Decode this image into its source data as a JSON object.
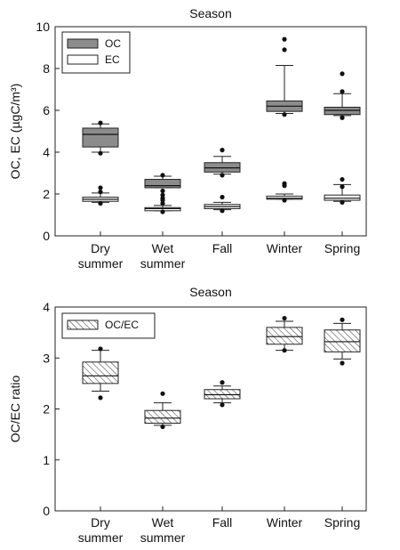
{
  "chart_data": [
    {
      "type": "box",
      "title": "Season",
      "ylabel": "OC, EC (µgC/m³)",
      "ylim": [
        0,
        10
      ],
      "yticks": [
        "0",
        "2",
        "4",
        "6",
        "8",
        "10"
      ],
      "categories": [
        {
          "line1": "Dry",
          "line2": "summer"
        },
        {
          "line1": "Wet",
          "line2": "summer"
        },
        {
          "line1": "Fall",
          "line2": ""
        },
        {
          "line1": "Winter",
          "line2": ""
        },
        {
          "line1": "Spring",
          "line2": ""
        }
      ],
      "legend": "top-left",
      "series": [
        {
          "name": "OC",
          "fill": "#8c8c8c",
          "hatch": false,
          "boxes": [
            {
              "whisker_low": 4.0,
              "q1": 4.25,
              "median": 4.85,
              "q3": 5.15,
              "whisker_high": 5.35,
              "outliers": [
                5.4,
                3.95
              ]
            },
            {
              "whisker_low": 2.3,
              "q1": 2.3,
              "median": 2.4,
              "q3": 2.7,
              "whisker_high": 2.85,
              "outliers": [
                2.9,
                2.15,
                1.95,
                1.8
              ]
            },
            {
              "whisker_low": 2.95,
              "q1": 3.05,
              "median": 3.25,
              "q3": 3.5,
              "whisker_high": 3.8,
              "outliers": [
                4.1,
                2.9
              ]
            },
            {
              "whisker_low": 5.85,
              "q1": 5.95,
              "median": 6.2,
              "q3": 6.45,
              "whisker_high": 8.15,
              "outliers": [
                9.4,
                8.9,
                5.8
              ]
            },
            {
              "whisker_low": 5.75,
              "q1": 5.8,
              "median": 6.0,
              "q3": 6.15,
              "whisker_high": 6.8,
              "outliers": [
                7.75,
                6.9,
                5.65
              ]
            }
          ]
        },
        {
          "name": "EC",
          "fill": "#ffffff",
          "hatch": false,
          "boxes": [
            {
              "whisker_low": 1.6,
              "q1": 1.65,
              "median": 1.75,
              "q3": 1.85,
              "whisker_high": 2.05,
              "outliers": [
                2.3,
                2.1,
                1.55
              ]
            },
            {
              "whisker_low": 1.2,
              "q1": 1.2,
              "median": 1.3,
              "q3": 1.35,
              "whisker_high": 1.45,
              "outliers": [
                1.7,
                1.55,
                1.15
              ]
            },
            {
              "whisker_low": 1.25,
              "q1": 1.3,
              "median": 1.4,
              "q3": 1.5,
              "whisker_high": 1.6,
              "outliers": [
                1.85,
                1.2
              ]
            },
            {
              "whisker_low": 1.75,
              "q1": 1.75,
              "median": 1.8,
              "q3": 1.9,
              "whisker_high": 2.0,
              "outliers": [
                2.5,
                2.4,
                1.7
              ]
            },
            {
              "whisker_low": 1.65,
              "q1": 1.7,
              "median": 1.8,
              "q3": 1.95,
              "whisker_high": 2.45,
              "outliers": [
                2.7,
                2.35,
                1.6
              ]
            }
          ]
        }
      ]
    },
    {
      "type": "box",
      "title": "Season",
      "ylabel": "OC/EC ratio",
      "ylim": [
        0,
        4
      ],
      "yticks": [
        "0",
        "1",
        "2",
        "3",
        "4"
      ],
      "categories": [
        {
          "line1": "Dry",
          "line2": "summer"
        },
        {
          "line1": "Wet",
          "line2": "summer"
        },
        {
          "line1": "Fall",
          "line2": ""
        },
        {
          "line1": "Winter",
          "line2": ""
        },
        {
          "line1": "Spring",
          "line2": ""
        }
      ],
      "legend": "top-left",
      "series": [
        {
          "name": "OC/EC",
          "fill": "#ffffff",
          "hatch": true,
          "boxes": [
            {
              "whisker_low": 2.35,
              "q1": 2.5,
              "median": 2.65,
              "q3": 2.92,
              "whisker_high": 3.15,
              "outliers": [
                3.18,
                2.22
              ]
            },
            {
              "whisker_low": 1.68,
              "q1": 1.72,
              "median": 1.82,
              "q3": 1.97,
              "whisker_high": 2.12,
              "outliers": [
                2.3,
                1.65
              ]
            },
            {
              "whisker_low": 2.12,
              "q1": 2.2,
              "median": 2.28,
              "q3": 2.38,
              "whisker_high": 2.45,
              "outliers": [
                2.52,
                2.08
              ]
            },
            {
              "whisker_low": 3.15,
              "q1": 3.27,
              "median": 3.42,
              "q3": 3.6,
              "whisker_high": 3.72,
              "outliers": [
                3.78,
                3.15
              ]
            },
            {
              "whisker_low": 2.98,
              "q1": 3.12,
              "median": 3.32,
              "q3": 3.55,
              "whisker_high": 3.68,
              "outliers": [
                3.75,
                2.9
              ]
            }
          ]
        }
      ]
    }
  ]
}
